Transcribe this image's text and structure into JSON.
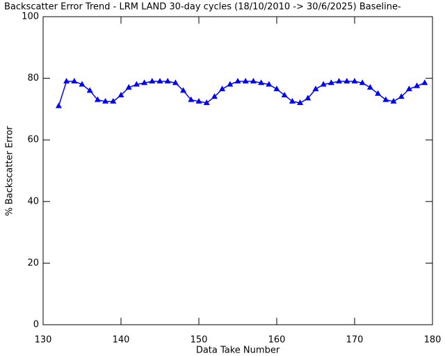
{
  "chart_data": {
    "type": "line",
    "title": "Backscatter Error Trend - LRM LAND 30-day cycles (18/10/2010 -> 30/6/2025) Baseline-",
    "x_label": "Data Take Number",
    "y_label": "% Backscatter Error",
    "x": [
      132,
      133,
      134,
      135,
      136,
      137,
      138,
      139,
      140,
      141,
      142,
      143,
      144,
      145,
      146,
      147,
      148,
      149,
      150,
      151,
      152,
      153,
      154,
      155,
      156,
      157,
      158,
      159,
      160,
      161,
      162,
      163,
      164,
      165,
      166,
      167,
      168,
      169,
      170,
      171,
      172,
      173,
      174,
      175,
      176,
      177,
      178,
      179
    ],
    "series": [
      {
        "name": "Backscatter Error",
        "color": "#0000ff",
        "values": [
          71,
          79,
          79,
          78,
          76,
          73,
          72.5,
          72.5,
          74.5,
          77,
          78,
          78.5,
          79,
          79,
          79,
          78.5,
          76,
          73,
          72.5,
          72,
          74,
          76.5,
          78,
          79,
          79,
          79,
          78.5,
          78,
          76.5,
          74.5,
          72.5,
          72,
          73.5,
          76.5,
          78,
          78.5,
          79,
          79,
          79,
          78.5,
          77,
          75,
          73,
          72.5,
          74,
          76.5,
          77.5,
          78.5
        ]
      }
    ],
    "xlim": [
      130,
      180
    ],
    "xticks": [
      130,
      140,
      150,
      160,
      170,
      180
    ],
    "ylim": [
      0,
      100
    ],
    "yticks": [
      0,
      20,
      40,
      60,
      80,
      100
    ]
  }
}
